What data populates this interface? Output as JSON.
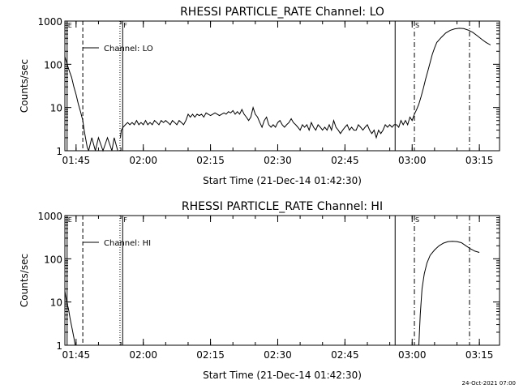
{
  "footer": {
    "timestamp": "24-Oct-2021 07:00"
  },
  "chart_data": [
    {
      "type": "line",
      "title": "RHESSI PARTICLE_RATE Channel: LO",
      "xlabel": "Start Time (21-Dec-14 01:42:30)",
      "ylabel": "Counts/sec",
      "yscale": "log",
      "ylim": [
        1,
        1000
      ],
      "xlim_min": [
        0,
        97
      ],
      "xticks_min": [
        2.5,
        17.5,
        32.5,
        47.5,
        62.5,
        77.5,
        92.5
      ],
      "xtick_labels": [
        "01:45",
        "02:00",
        "02:15",
        "02:30",
        "02:45",
        "03:00",
        "03:15"
      ],
      "ytick_values": [
        1,
        10,
        100,
        1000
      ],
      "ytick_labels": [
        "1",
        "10",
        "100",
        "1000"
      ],
      "grid": false,
      "legend": {
        "position": "top-left",
        "entries": [
          "Channel: LO"
        ]
      },
      "markers": [
        {
          "label": "E",
          "min": 0.5,
          "style": "solid"
        },
        {
          "label": "",
          "min": 4.0,
          "style": "dash"
        },
        {
          "label": "",
          "min": 12.3,
          "style": "dot"
        },
        {
          "label": "F",
          "min": 12.9,
          "style": "solid"
        },
        {
          "label": "",
          "min": 73.7,
          "style": "solid"
        },
        {
          "label": "S",
          "min": 78.0,
          "style": "dashdot"
        },
        {
          "label": "",
          "min": 90.3,
          "style": "dashdot"
        }
      ],
      "series": [
        {
          "segments": [
            [
              [
                0,
                150
              ],
              [
                0.5,
                100
              ],
              [
                1,
                70
              ],
              [
                1.5,
                50
              ],
              [
                2,
                30
              ],
              [
                2.5,
                20
              ],
              [
                3,
                12
              ],
              [
                3.5,
                8
              ],
              [
                4,
                5
              ],
              [
                4.3,
                3
              ],
              [
                4.6,
                2
              ],
              [
                5,
                1.2
              ],
              [
                5.3,
                1
              ]
            ],
            [
              [
                5.3,
                1
              ],
              [
                6,
                2
              ],
              [
                6.8,
                1
              ],
              [
                7.5,
                2
              ],
              [
                8.5,
                1
              ],
              [
                9.5,
                2
              ],
              [
                10.5,
                1
              ],
              [
                11,
                2
              ],
              [
                11.8,
                1
              ]
            ],
            [
              [
                12.4,
                2
              ],
              [
                12.6,
                3
              ],
              [
                13,
                3.5
              ],
              [
                13.5,
                4
              ],
              [
                14,
                4.5
              ],
              [
                14.5,
                4
              ],
              [
                15,
                4.5
              ],
              [
                15.5,
                4
              ],
              [
                16,
                5
              ],
              [
                16.5,
                4
              ],
              [
                17,
                4.5
              ],
              [
                17.5,
                4
              ],
              [
                18,
                5
              ],
              [
                18.5,
                4
              ],
              [
                19,
                4.5
              ],
              [
                19.5,
                4
              ],
              [
                20,
                5
              ],
              [
                20.5,
                4.5
              ],
              [
                21,
                4
              ],
              [
                21.5,
                5
              ],
              [
                22,
                4.5
              ],
              [
                22.5,
                5
              ],
              [
                23,
                4.5
              ],
              [
                23.5,
                4
              ],
              [
                24,
                5
              ],
              [
                24.5,
                4.5
              ],
              [
                25,
                4
              ],
              [
                25.5,
                5
              ],
              [
                26,
                4.5
              ],
              [
                26.5,
                4
              ],
              [
                27,
                5
              ],
              [
                27.5,
                7
              ],
              [
                28,
                6
              ],
              [
                28.5,
                7
              ],
              [
                29,
                6
              ],
              [
                29.5,
                7
              ],
              [
                30,
                6.5
              ],
              [
                30.5,
                7
              ],
              [
                31,
                6
              ],
              [
                31.5,
                7.5
              ],
              [
                32,
                7
              ],
              [
                32.5,
                6.5
              ],
              [
                33,
                7
              ],
              [
                33.5,
                7.5
              ],
              [
                34,
                7
              ],
              [
                34.5,
                6.5
              ],
              [
                35,
                7
              ],
              [
                35.5,
                7.5
              ],
              [
                36,
                7
              ],
              [
                36.5,
                8
              ],
              [
                37,
                7.5
              ],
              [
                37.5,
                8.5
              ],
              [
                38,
                7
              ],
              [
                38.5,
                8
              ],
              [
                39,
                7
              ],
              [
                39.5,
                9
              ],
              [
                40,
                7
              ],
              [
                40.5,
                6
              ],
              [
                41,
                5
              ],
              [
                41.5,
                6
              ],
              [
                42,
                10
              ],
              [
                42.5,
                7
              ],
              [
                43,
                6
              ],
              [
                43.5,
                4.5
              ],
              [
                44,
                3.5
              ],
              [
                44.5,
                5
              ],
              [
                45,
                6
              ],
              [
                45.5,
                4
              ],
              [
                46,
                3.5
              ],
              [
                46.5,
                4
              ],
              [
                47,
                3.5
              ],
              [
                47.5,
                4.5
              ],
              [
                48,
                5
              ],
              [
                48.5,
                4
              ],
              [
                49,
                3.5
              ],
              [
                49.5,
                4
              ],
              [
                50,
                4.5
              ],
              [
                50.5,
                5.5
              ],
              [
                51,
                4.5
              ],
              [
                51.5,
                4
              ],
              [
                52,
                3.5
              ],
              [
                52.5,
                3
              ],
              [
                53,
                4
              ],
              [
                53.5,
                3.5
              ],
              [
                54,
                4
              ],
              [
                54.5,
                3
              ],
              [
                55,
                4.5
              ],
              [
                55.5,
                3.5
              ],
              [
                56,
                3
              ],
              [
                56.5,
                4
              ],
              [
                57,
                3.5
              ],
              [
                57.5,
                3
              ],
              [
                58,
                3.5
              ],
              [
                58.5,
                3
              ],
              [
                59,
                4
              ],
              [
                59.5,
                3
              ],
              [
                60,
                5
              ],
              [
                60.5,
                3.5
              ],
              [
                61,
                3
              ],
              [
                61.5,
                2.5
              ],
              [
                62,
                3
              ],
              [
                62.5,
                3.5
              ],
              [
                63,
                4
              ],
              [
                63.5,
                3
              ],
              [
                64,
                3.5
              ],
              [
                64.5,
                3
              ],
              [
                65,
                3
              ],
              [
                65.5,
                4
              ],
              [
                66,
                3.5
              ],
              [
                66.5,
                3
              ],
              [
                67,
                3.5
              ],
              [
                67.5,
                4
              ],
              [
                68,
                3
              ],
              [
                68.5,
                2.5
              ],
              [
                69,
                3
              ],
              [
                69.5,
                2
              ],
              [
                70,
                3
              ],
              [
                70.5,
                2.5
              ],
              [
                71,
                3
              ],
              [
                71.5,
                4
              ],
              [
                72,
                3.5
              ],
              [
                72.5,
                4
              ],
              [
                73,
                3.5
              ],
              [
                73.5,
                4
              ],
              [
                74,
                4
              ],
              [
                74.5,
                3.5
              ],
              [
                75,
                5
              ],
              [
                75.5,
                4
              ],
              [
                76,
                5
              ],
              [
                76.5,
                4
              ],
              [
                77,
                6
              ],
              [
                77.5,
                5
              ],
              [
                78,
                7
              ],
              [
                78.5,
                9
              ],
              [
                79,
                12
              ],
              [
                79.5,
                18
              ],
              [
                80,
                28
              ],
              [
                80.5,
                45
              ],
              [
                81,
                70
              ],
              [
                81.5,
                110
              ],
              [
                82,
                170
              ],
              [
                82.5,
                240
              ],
              [
                83,
                320
              ],
              [
                84,
                420
              ],
              [
                85,
                530
              ],
              [
                86,
                610
              ],
              [
                87,
                660
              ],
              [
                88,
                680
              ],
              [
                89,
                670
              ],
              [
                90,
                620
              ],
              [
                91,
                550
              ],
              [
                92,
                460
              ],
              [
                93,
                380
              ],
              [
                94,
                320
              ],
              [
                95,
                280
              ]
            ]
          ]
        }
      ]
    },
    {
      "type": "line",
      "title": "RHESSI PARTICLE_RATE Channel: HI",
      "xlabel": "Start Time (21-Dec-14 01:42:30)",
      "ylabel": "Counts/sec",
      "yscale": "log",
      "ylim": [
        1,
        1000
      ],
      "xlim_min": [
        0,
        97
      ],
      "xticks_min": [
        2.5,
        17.5,
        32.5,
        47.5,
        62.5,
        77.5,
        92.5
      ],
      "xtick_labels": [
        "01:45",
        "02:00",
        "02:15",
        "02:30",
        "02:45",
        "03:00",
        "03:15"
      ],
      "ytick_values": [
        1,
        10,
        100,
        1000
      ],
      "ytick_labels": [
        "1",
        "10",
        "100",
        "1000"
      ],
      "grid": false,
      "legend": {
        "position": "top-left",
        "entries": [
          "Channel: HI"
        ]
      },
      "markers": [
        {
          "label": "E",
          "min": 0.5,
          "style": "solid"
        },
        {
          "label": "",
          "min": 4.0,
          "style": "dash"
        },
        {
          "label": "",
          "min": 12.3,
          "style": "dot"
        },
        {
          "label": "F",
          "min": 12.9,
          "style": "solid"
        },
        {
          "label": "",
          "min": 73.7,
          "style": "solid"
        },
        {
          "label": "S",
          "min": 78.0,
          "style": "dashdot"
        },
        {
          "label": "",
          "min": 90.3,
          "style": "dashdot"
        }
      ],
      "series": [
        {
          "segments": [
            [
              [
                0,
                18
              ],
              [
                0.4,
                10
              ],
              [
                0.8,
                7
              ],
              [
                1.2,
                4
              ],
              [
                1.6,
                2.5
              ],
              [
                2.0,
                1.5
              ],
              [
                2.3,
                1
              ]
            ],
            [
              [
                79,
                1
              ],
              [
                79.3,
                5
              ],
              [
                79.7,
                20
              ],
              [
                80.2,
                45
              ],
              [
                80.8,
                80
              ],
              [
                81.5,
                120
              ],
              [
                82.5,
                160
              ],
              [
                83.5,
                200
              ],
              [
                84.5,
                230
              ],
              [
                85.5,
                250
              ],
              [
                86.5,
                255
              ],
              [
                87.5,
                250
              ],
              [
                88.5,
                235
              ],
              [
                89.5,
                200
              ],
              [
                90.5,
                170
              ],
              [
                91.5,
                150
              ],
              [
                92.5,
                140
              ]
            ]
          ]
        }
      ]
    }
  ]
}
